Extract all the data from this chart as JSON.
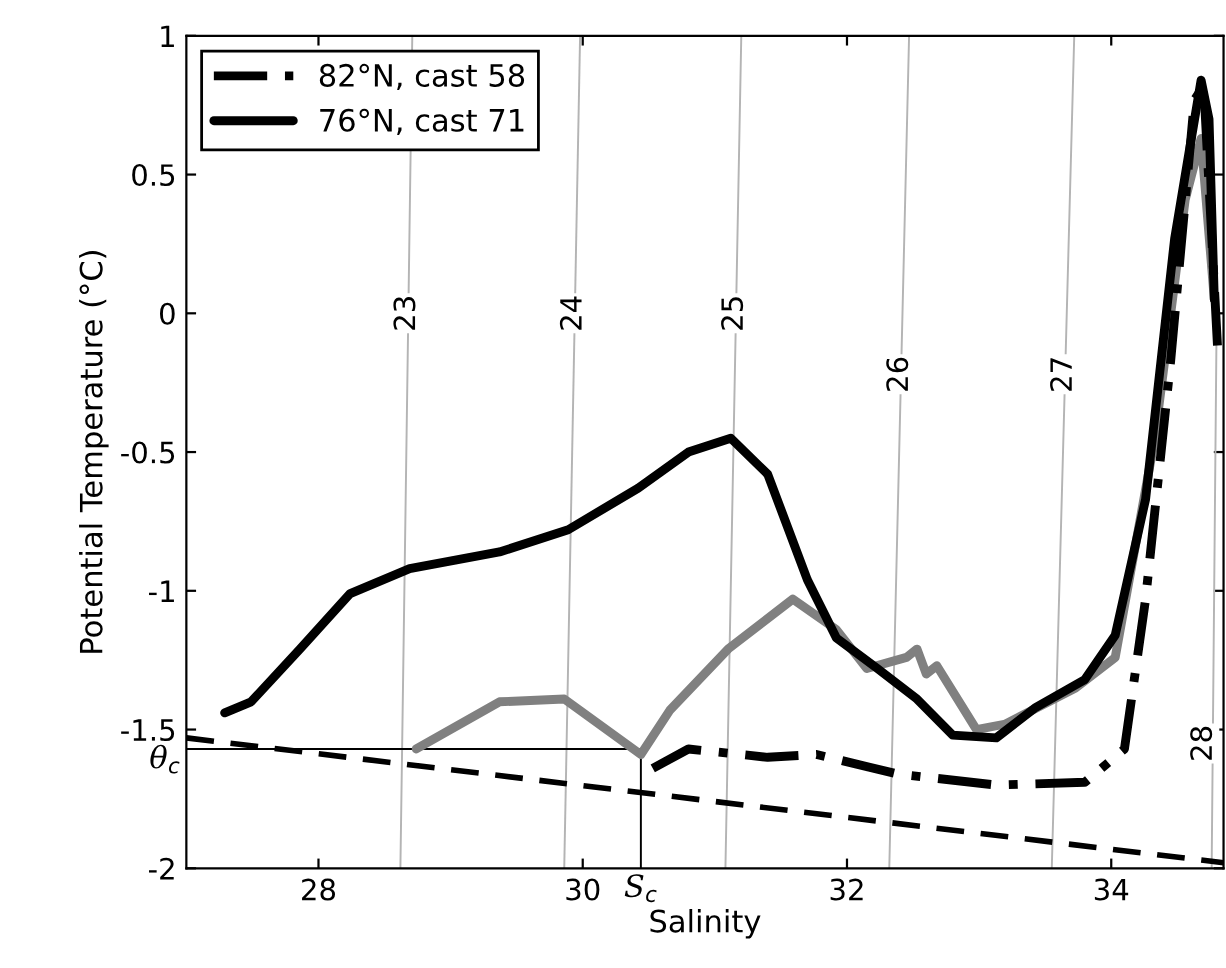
{
  "chart_data": {
    "type": "line",
    "xlabel": "Salinity",
    "ylabel": "Potential Temperature (°C)",
    "xlim": [
      27,
      34.85
    ],
    "ylim": [
      -2,
      1
    ],
    "xticks": [
      28,
      30,
      32,
      34
    ],
    "yticks": [
      -2,
      -1.5,
      -1,
      -0.5,
      0,
      0.5,
      1
    ],
    "grid": false,
    "legend": "top left",
    "marker": "none",
    "series": [
      {
        "color": "#b4b4b4",
        "line_style": "solid",
        "x": [
          28.62,
          28.71
        ],
        "values": [
          -2,
          1
        ]
      },
      {
        "color": "#b4b4b4",
        "line_style": "solid",
        "x": [
          29.86,
          29.98
        ],
        "values": [
          -2,
          1
        ]
      },
      {
        "color": "#b4b4b4",
        "line_style": "solid",
        "x": [
          31.08,
          31.2
        ],
        "values": [
          -2,
          1
        ]
      },
      {
        "color": "#b4b4b4",
        "line_style": "solid",
        "x": [
          32.32,
          32.47
        ],
        "values": [
          -2,
          1
        ]
      },
      {
        "color": "#b4b4b4",
        "line_style": "solid",
        "x": [
          33.55,
          33.72
        ],
        "values": [
          -2,
          1
        ]
      },
      {
        "color": "#b4b4b4",
        "line_style": "solid",
        "x": [
          34.76,
          34.8
        ],
        "values": [
          -2,
          0.1
        ]
      },
      {
        "color": "#000000",
        "line_style": "solid",
        "x": [
          27,
          30.44,
          30.44
        ],
        "values": [
          -1.57,
          -1.57,
          -2
        ]
      },
      {
        "color": "#000000",
        "line_style": "dashed",
        "x": [
          27,
          34.85
        ],
        "values": [
          -1.53,
          -1.98
        ]
      },
      {
        "color": "#808080",
        "line_style": "solid",
        "x": [
          28.74,
          29.37,
          29.86,
          30.44,
          30.66,
          31.1,
          31.59,
          31.92,
          32.15,
          32.45,
          32.53,
          32.6,
          32.68,
          32.98,
          33.2,
          33.73,
          34.03,
          34.33,
          34.56,
          34.68,
          34.78
        ],
        "values": [
          -1.57,
          -1.4,
          -1.39,
          -1.59,
          -1.43,
          -1.21,
          -1.03,
          -1.14,
          -1.28,
          -1.24,
          -1.21,
          -1.3,
          -1.27,
          -1.5,
          -1.48,
          -1.35,
          -1.24,
          -0.45,
          0.41,
          0.63,
          0.05
        ]
      },
      {
        "name": "82°N, cast 58",
        "color": "#000000",
        "line_style": "dashdot",
        "x": [
          30.53,
          30.8,
          31.4,
          31.77,
          32.38,
          33.13,
          33.8,
          34.1,
          34.26,
          34.45,
          34.63,
          34.7,
          34.81
        ],
        "values": [
          -1.64,
          -1.57,
          -1.6,
          -1.59,
          -1.66,
          -1.7,
          -1.69,
          -1.57,
          -1.03,
          -0.17,
          0.77,
          0.82,
          -0.17
        ]
      },
      {
        "name": "76°N, cast 71",
        "color": "#000000",
        "line_style": "solid",
        "x": [
          27.29,
          27.49,
          27.86,
          28.24,
          28.69,
          29.37,
          29.89,
          30.42,
          30.8,
          31.12,
          31.4,
          31.7,
          31.92,
          32.23,
          32.53,
          32.8,
          33.13,
          33.43,
          33.8,
          34.03,
          34.26,
          34.48,
          34.68,
          34.74,
          34.78
        ],
        "values": [
          -1.44,
          -1.4,
          -1.21,
          -1.01,
          -0.92,
          -0.86,
          -0.78,
          -0.63,
          -0.5,
          -0.45,
          -0.58,
          -0.96,
          -1.17,
          -1.28,
          -1.39,
          -1.52,
          -1.53,
          -1.42,
          -1.32,
          -1.16,
          -0.67,
          0.27,
          0.84,
          0.7,
          0.05
        ]
      }
    ],
    "annotations": [
      {
        "text": "23",
        "x": 28.67,
        "y": 0
      },
      {
        "text": "24",
        "x": 29.93,
        "y": 0
      },
      {
        "text": "25",
        "x": 31.15,
        "y": 0
      },
      {
        "text": "26",
        "x": 32.4,
        "y": -0.22
      },
      {
        "text": "27",
        "x": 33.64,
        "y": -0.22
      },
      {
        "text": "28",
        "x": 34.7,
        "y": -1.55
      },
      {
        "text": "θ$_{c}$",
        "x": 27,
        "y": -1.57
      },
      {
        "text": "S$_{c}$",
        "x": 30.44,
        "y": -2
      }
    ]
  }
}
